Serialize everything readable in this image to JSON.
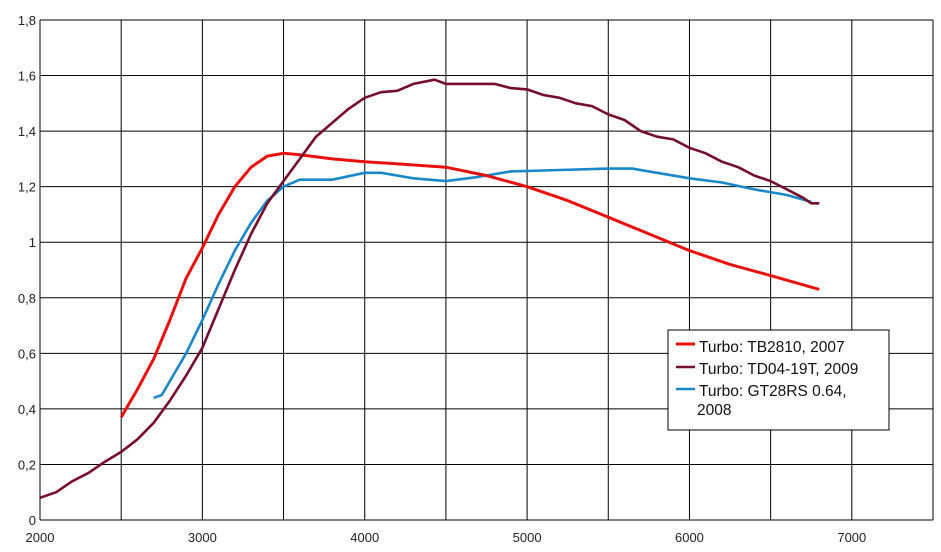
{
  "chart_data": {
    "type": "line",
    "title": "",
    "xlabel": "",
    "ylabel": "",
    "xlim": [
      2000,
      7500
    ],
    "ylim": [
      0,
      1.8
    ],
    "grid": true,
    "x_grid_step": 500,
    "y_grid_step": 0.2,
    "x_ticks": [
      "2000",
      "3000",
      "4000",
      "5000",
      "6000",
      "7000"
    ],
    "x_tick_values": [
      2000,
      3000,
      4000,
      5000,
      6000,
      7000
    ],
    "y_ticks": [
      "0",
      "0,2",
      "0,4",
      "0,6",
      "0,8",
      "1",
      "1,2",
      "1,4",
      "1,6",
      "1,8"
    ],
    "y_tick_values": [
      0,
      0.2,
      0.4,
      0.6,
      0.8,
      1.0,
      1.2,
      1.4,
      1.6,
      1.8
    ],
    "legend_position": "right-middle",
    "series": [
      {
        "name": "Turbo: TB2810, 2007",
        "color": "#e8100f",
        "x": [
          2500,
          2600,
          2700,
          2800,
          2900,
          3000,
          3100,
          3200,
          3300,
          3400,
          3500,
          3600,
          3800,
          4000,
          4250,
          4500,
          4750,
          5000,
          5250,
          5500,
          5750,
          6000,
          6250,
          6500,
          6800
        ],
        "y": [
          0.37,
          0.47,
          0.58,
          0.72,
          0.87,
          0.98,
          1.1,
          1.2,
          1.27,
          1.31,
          1.32,
          1.315,
          1.3,
          1.29,
          1.28,
          1.27,
          1.24,
          1.2,
          1.15,
          1.09,
          1.03,
          0.97,
          0.92,
          0.88,
          0.83
        ]
      },
      {
        "name": "Turbo: TD04-19T, 2009",
        "color": "#750e2a",
        "x": [
          2000,
          2100,
          2200,
          2300,
          2400,
          2500,
          2600,
          2700,
          2800,
          2900,
          3000,
          3100,
          3200,
          3300,
          3400,
          3500,
          3600,
          3700,
          3800,
          3900,
          4000,
          4100,
          4200,
          4300,
          4430,
          4500,
          4800,
          4900,
          5000,
          5100,
          5200,
          5300,
          5400,
          5500,
          5600,
          5700,
          5800,
          5900,
          6000,
          6100,
          6200,
          6300,
          6400,
          6500,
          6600,
          6700,
          6750,
          6800
        ],
        "y": [
          0.08,
          0.1,
          0.14,
          0.17,
          0.21,
          0.245,
          0.29,
          0.35,
          0.43,
          0.52,
          0.62,
          0.76,
          0.9,
          1.03,
          1.14,
          1.22,
          1.3,
          1.38,
          1.43,
          1.48,
          1.52,
          1.54,
          1.545,
          1.57,
          1.585,
          1.57,
          1.57,
          1.555,
          1.55,
          1.53,
          1.52,
          1.5,
          1.49,
          1.46,
          1.44,
          1.4,
          1.38,
          1.37,
          1.34,
          1.32,
          1.29,
          1.27,
          1.24,
          1.22,
          1.19,
          1.16,
          1.14,
          1.14
        ]
      },
      {
        "name": "Turbo: GT28RS 0.64, 2008",
        "color": "#1a87c9",
        "x": [
          2700,
          2750,
          2800,
          2900,
          3000,
          3100,
          3200,
          3300,
          3400,
          3500,
          3600,
          3800,
          4000,
          4100,
          4300,
          4500,
          4700,
          4900,
          5200,
          5500,
          5650,
          5800,
          6000,
          6200,
          6400,
          6600,
          6750
        ],
        "y": [
          0.44,
          0.45,
          0.5,
          0.6,
          0.72,
          0.85,
          0.97,
          1.07,
          1.15,
          1.2,
          1.225,
          1.225,
          1.25,
          1.25,
          1.23,
          1.22,
          1.235,
          1.255,
          1.26,
          1.265,
          1.265,
          1.25,
          1.23,
          1.215,
          1.19,
          1.17,
          1.145
        ]
      }
    ]
  }
}
